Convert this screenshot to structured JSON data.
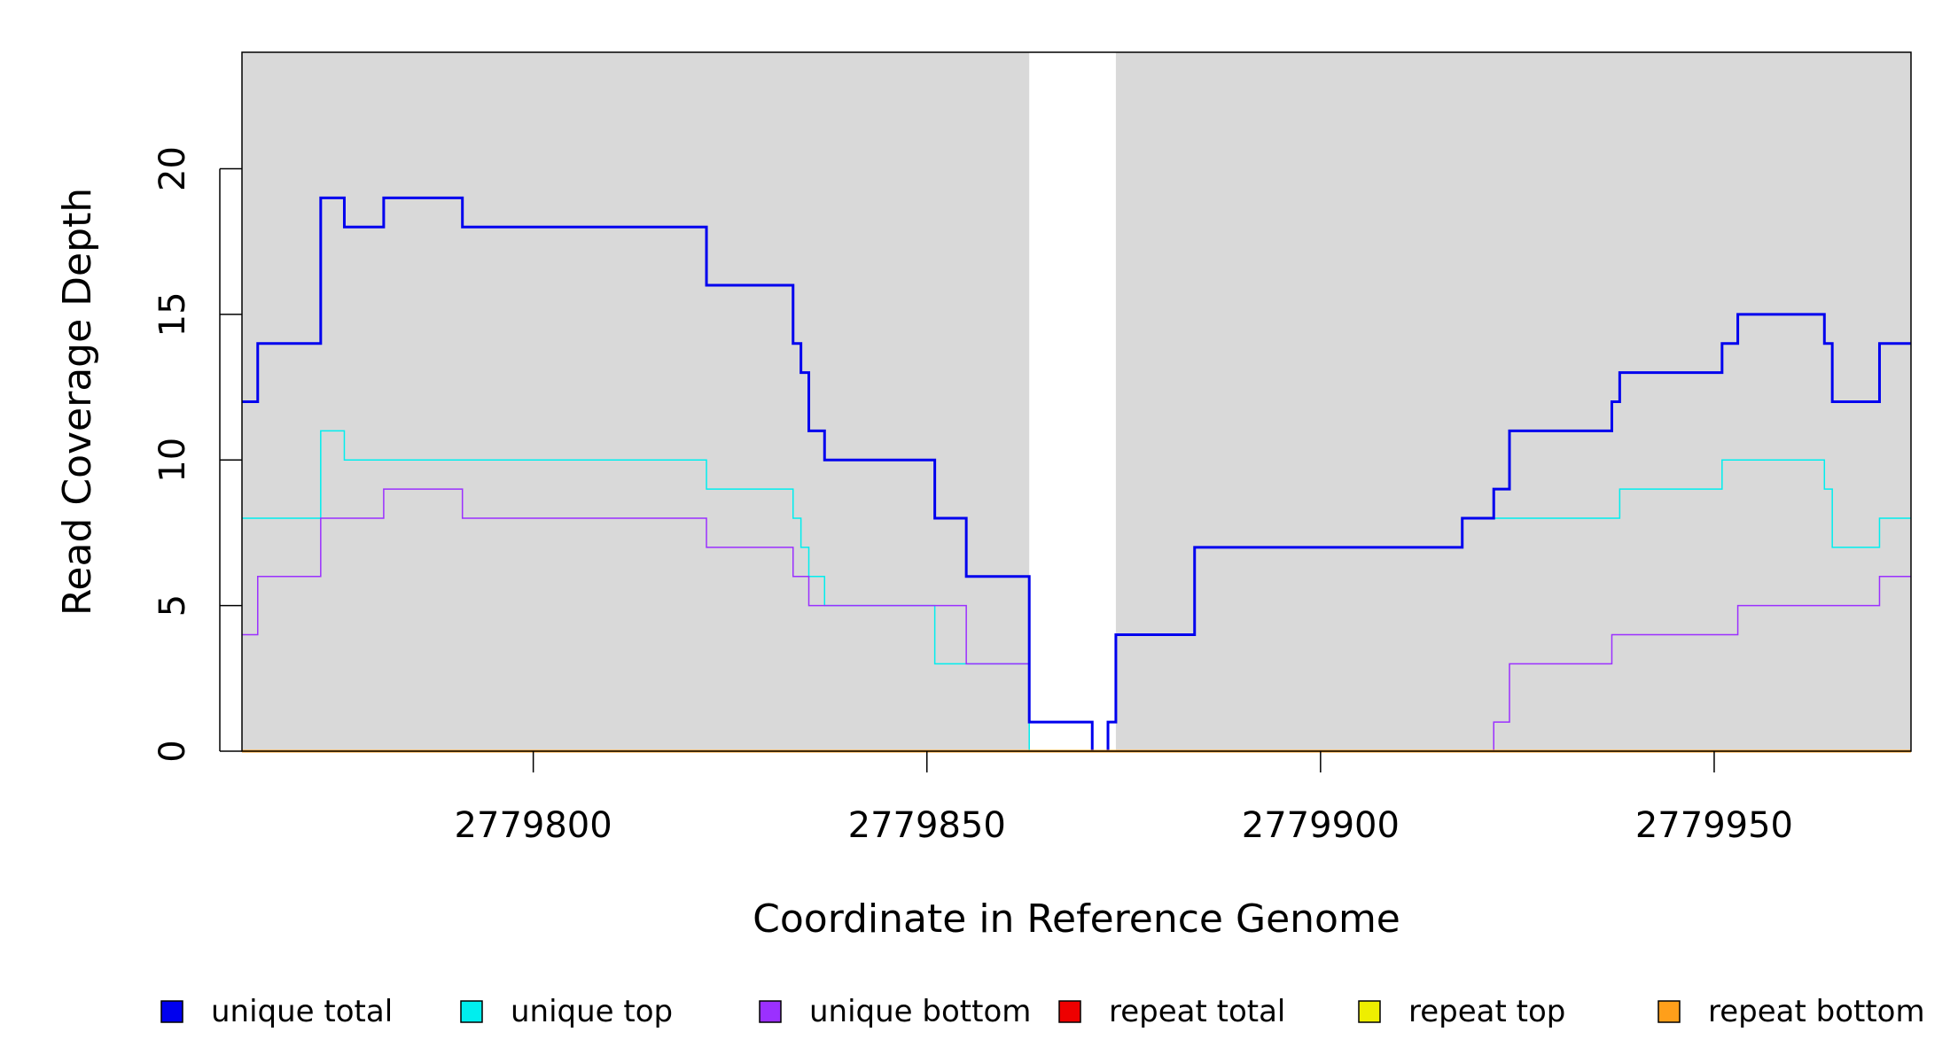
{
  "chart_data": {
    "type": "line",
    "subtype": "step",
    "xlabel": "Coordinate in Reference Genome",
    "ylabel": "Read Coverage Depth",
    "xlim": [
      2779763,
      2779975
    ],
    "ylim": [
      0,
      24
    ],
    "x_ticks": [
      2779800,
      2779850,
      2779900,
      2779950
    ],
    "x_tick_labels": [
      "2779800",
      "2779850",
      "2779900",
      "2779950"
    ],
    "y_ticks": [
      0,
      5,
      10,
      15,
      20
    ],
    "y_tick_labels": [
      "0",
      "5",
      "10",
      "15",
      "20"
    ],
    "shaded_regions": [
      {
        "from": 2779763,
        "to": 2779863
      },
      {
        "from": 2779874,
        "to": 2779975
      }
    ],
    "panel_color": "#d9d9d9",
    "series": [
      {
        "name": "unique total",
        "color": "#0000ee",
        "line_width": 3,
        "x": [
          2779763,
          2779765,
          2779773,
          2779776,
          2779781,
          2779791,
          2779822,
          2779833,
          2779834,
          2779835,
          2779837,
          2779851,
          2779855,
          2779863,
          2779871,
          2779873,
          2779874,
          2779884,
          2779918,
          2779922,
          2779924,
          2779937,
          2779938,
          2779951,
          2779953,
          2779964,
          2779965,
          2779971,
          2779975
        ],
        "values": [
          12,
          14,
          19,
          18,
          19,
          18,
          16,
          14,
          13,
          11,
          10,
          8,
          6,
          1,
          0,
          1,
          4,
          7,
          8,
          9,
          11,
          12,
          13,
          14,
          15,
          14,
          12,
          14,
          14
        ]
      },
      {
        "name": "unique top",
        "color": "#00eeee",
        "line_width": 1.5,
        "x": [
          2779763,
          2779773,
          2779776,
          2779822,
          2779833,
          2779834,
          2779835,
          2779837,
          2779851,
          2779855,
          2779863,
          2779871,
          2779873,
          2779874,
          2779884,
          2779918,
          2779938,
          2779951,
          2779964,
          2779965,
          2779971,
          2779975
        ],
        "values": [
          8,
          11,
          10,
          9,
          8,
          7,
          6,
          5,
          3,
          3,
          0,
          0,
          1,
          4,
          7,
          8,
          9,
          10,
          9,
          7,
          8,
          8
        ]
      },
      {
        "name": "unique bottom",
        "color": "#9b30ff",
        "line_width": 1.5,
        "x": [
          2779763,
          2779765,
          2779773,
          2779781,
          2779791,
          2779822,
          2779833,
          2779835,
          2779855,
          2779863,
          2779871,
          2779922,
          2779924,
          2779937,
          2779953,
          2779971,
          2779975
        ],
        "values": [
          4,
          6,
          8,
          9,
          8,
          7,
          6,
          5,
          3,
          1,
          0,
          1,
          3,
          4,
          5,
          6,
          6
        ]
      },
      {
        "name": "repeat total",
        "color": "#ee0000",
        "line_width": 1.5,
        "x": [
          2779763,
          2779975
        ],
        "values": [
          0,
          0
        ]
      },
      {
        "name": "repeat top",
        "color": "#eeee00",
        "line_width": 1.5,
        "x": [
          2779763,
          2779975
        ],
        "values": [
          0,
          0
        ]
      },
      {
        "name": "repeat bottom",
        "color": "#ff9f1a",
        "line_width": 3,
        "x": [
          2779763,
          2779975
        ],
        "values": [
          0,
          0
        ]
      }
    ],
    "legend": [
      "unique total",
      "unique top",
      "unique bottom",
      "repeat total",
      "repeat top",
      "repeat bottom"
    ],
    "legend_position": "bottom"
  }
}
